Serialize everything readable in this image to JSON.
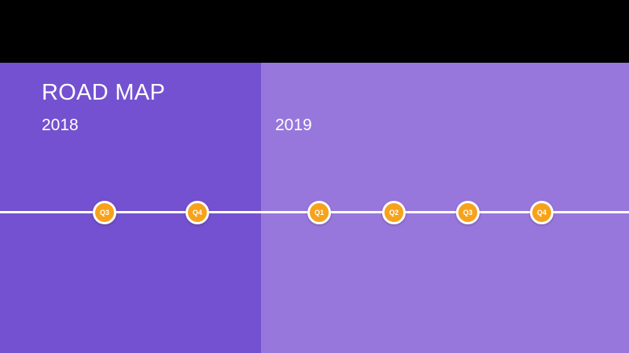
{
  "title": "ROAD MAP",
  "years": [
    "2018",
    "2019"
  ],
  "colors": {
    "panel_2018": "#7451d0",
    "panel_2019": "#9877dd",
    "milestone": "#f7a21b",
    "line": "#ffffff"
  },
  "milestones": [
    {
      "year": "2018",
      "label": "Q3"
    },
    {
      "year": "2018",
      "label": "Q4"
    },
    {
      "year": "2019",
      "label": "Q1"
    },
    {
      "year": "2019",
      "label": "Q2"
    },
    {
      "year": "2019",
      "label": "Q3"
    },
    {
      "year": "2019",
      "label": "Q4"
    }
  ]
}
